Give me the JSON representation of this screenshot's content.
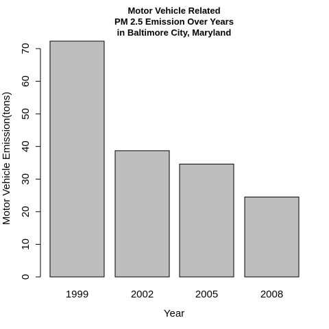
{
  "chart_data": {
    "type": "bar",
    "title_lines": [
      "Motor Vehicle Related",
      "PM 2.5 Emission Over Years",
      "in Baltimore City, Maryland"
    ],
    "xlabel": "Year",
    "ylabel": "Motor Vehicle Emission(tons)",
    "categories": [
      "1999",
      "2002",
      "2005",
      "2008"
    ],
    "values": [
      72.3,
      38.7,
      34.6,
      24.5
    ],
    "yticks": [
      0,
      10,
      20,
      30,
      40,
      50,
      60,
      70
    ],
    "ylim": [
      0,
      72.3
    ],
    "bar_color": "#bebebe",
    "grid": false
  }
}
